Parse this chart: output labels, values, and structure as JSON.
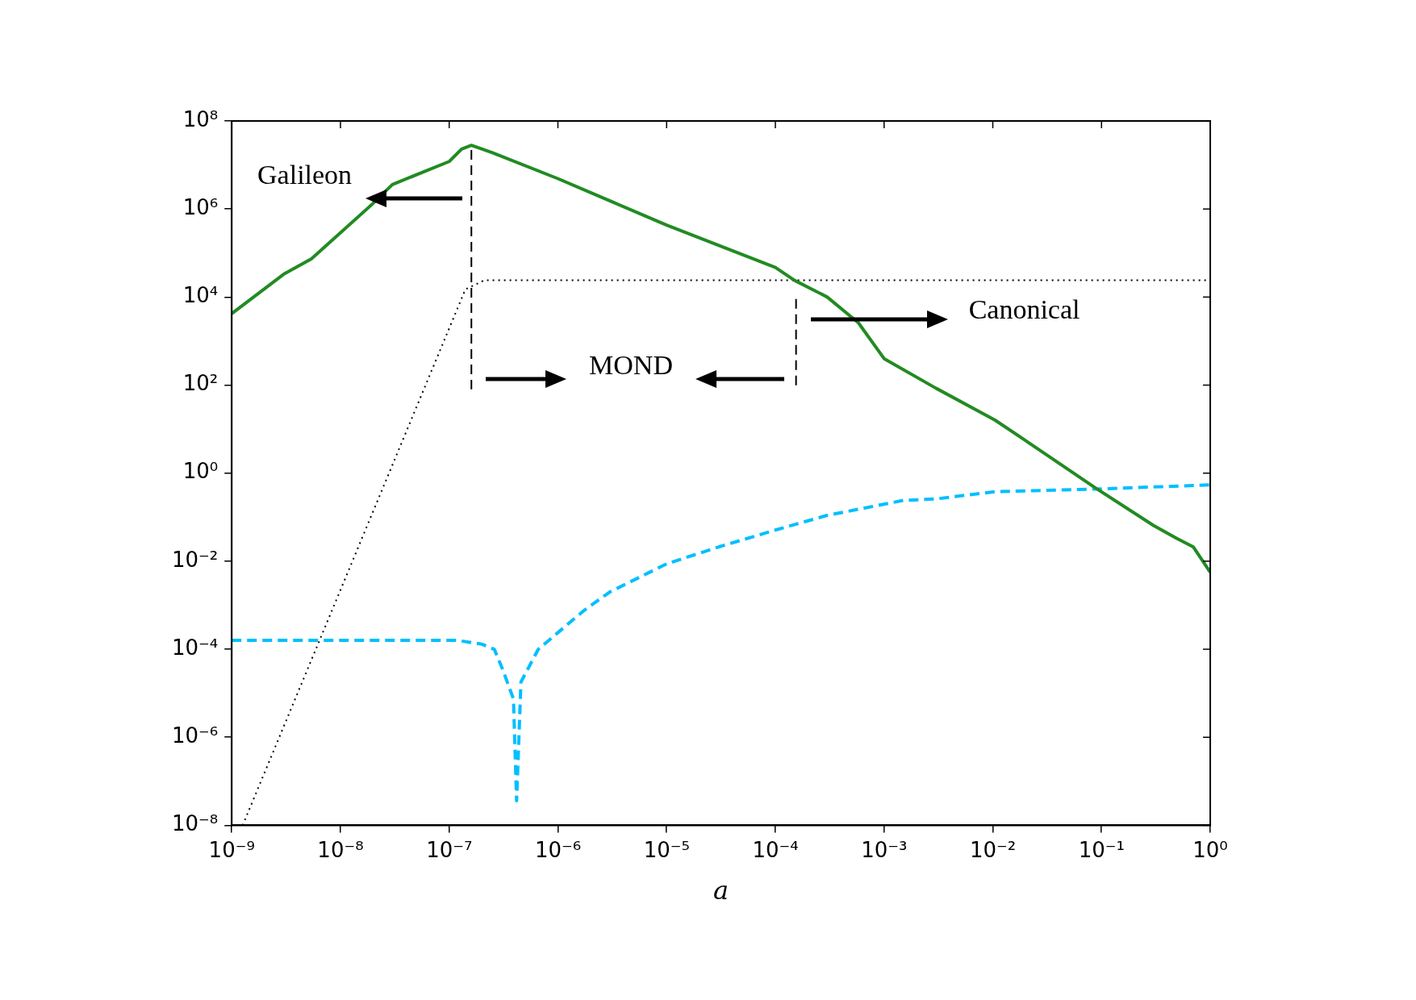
{
  "chart_data": {
    "type": "line",
    "xlabel": "a",
    "log": "xy",
    "grid": false,
    "legend": false,
    "marker": "none",
    "xlim": [
      1e-09,
      1
    ],
    "ylim": [
      1e-08,
      100000000.0
    ],
    "xticks": [
      {
        "value": 1e-09,
        "label": "10⁻⁹"
      },
      {
        "value": 1e-08,
        "label": "10⁻⁸"
      },
      {
        "value": 1e-07,
        "label": "10⁻⁷"
      },
      {
        "value": 1e-06,
        "label": "10⁻⁶"
      },
      {
        "value": 1e-05,
        "label": "10⁻⁵"
      },
      {
        "value": 0.0001,
        "label": "10⁻⁴"
      },
      {
        "value": 0.001,
        "label": "10⁻³"
      },
      {
        "value": 0.01,
        "label": "10⁻²"
      },
      {
        "value": 0.1,
        "label": "10⁻¹"
      },
      {
        "value": 1,
        "label": "10⁰"
      }
    ],
    "yticks": [
      {
        "value": 1e-08,
        "label": "10⁻⁸"
      },
      {
        "value": 1e-06,
        "label": "10⁻⁶"
      },
      {
        "value": 0.0001,
        "label": "10⁻⁴"
      },
      {
        "value": 0.01,
        "label": "10⁻²"
      },
      {
        "value": 1,
        "label": "10⁰"
      },
      {
        "value": 100.0,
        "label": "10²"
      },
      {
        "value": 10000.0,
        "label": "10⁴"
      },
      {
        "value": 1000000.0,
        "label": "10⁶"
      },
      {
        "value": 100000000.0,
        "label": "10⁸"
      }
    ],
    "series": [
      {
        "color": "#228b22",
        "line_style": "solid",
        "x": [
          1e-09,
          3e-09,
          5.4e-09,
          1.9e-08,
          3e-08,
          1e-07,
          1.3e-07,
          1.6e-07,
          2.5e-07,
          1e-06,
          1e-05,
          0.0001,
          0.00015,
          0.0003,
          0.00058,
          0.001,
          0.003,
          0.0105,
          0.03,
          0.087,
          0.3,
          0.49,
          0.7,
          1
        ],
        "values": [
          4200.0,
          33000.0,
          74000.0,
          1200000.0,
          3600000.0,
          12000000.0,
          23000000.0,
          28000000.0,
          19000000.0,
          4900000.0,
          430000.0,
          47000.0,
          24000.0,
          10000.0,
          2600.0,
          400.0,
          85,
          16,
          2.8,
          0.47,
          0.065,
          0.033,
          0.021,
          0.0056
        ]
      },
      {
        "color": "#000000",
        "line_style": "dotted",
        "x": [
          1.26e-09,
          1.41e-07,
          2.1e-07,
          1
        ],
        "values": [
          1e-08,
          15000.0,
          24000.0,
          24000.0
        ]
      },
      {
        "color": "#00bfff",
        "line_style": "dashed",
        "x": [
          1e-09,
          3e-08,
          1.17e-07,
          2e-07,
          2.6e-07,
          3.1e-07,
          3.9e-07,
          4.17e-07,
          4.57e-07,
          6.6e-07,
          1.74e-06,
          3e-06,
          1e-05,
          3e-05,
          0.0001,
          0.0003,
          0.0015,
          0.003,
          0.0105,
          0.1,
          1
        ],
        "values": [
          0.00016,
          0.00016,
          0.00016,
          0.00013,
          0.0001,
          3.5e-05,
          7.4e-06,
          3.6e-08,
          1.8e-05,
          0.0001,
          0.00076,
          0.002,
          0.0087,
          0.021,
          0.051,
          0.11,
          0.24,
          0.26,
          0.38,
          0.44,
          0.54
        ]
      },
      {
        "color": "#000000",
        "line_style": "dashed",
        "x": [
          1.6e-07,
          1.6e-07
        ],
        "values": [
          22000000.0,
          80.0
        ]
      },
      {
        "color": "#000000",
        "line_style": "dashed",
        "x": [
          0.000155,
          0.000155
        ],
        "values": [
          9000.0,
          80.0
        ]
      }
    ],
    "annotations": [
      "Galileon",
      "MOND",
      "Canonical"
    ]
  }
}
